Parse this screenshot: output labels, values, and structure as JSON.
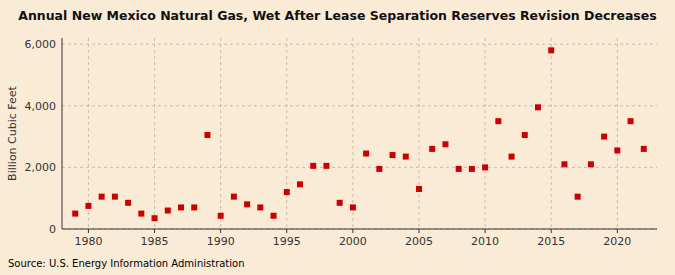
{
  "chart_data": {
    "type": "scatter",
    "title": "Annual New Mexico Natural Gas, Wet After Lease Separation Reserves Revision Decreases",
    "y_label": "Billion Cubic Feet",
    "annotations": [
      "Source: U.S. Energy Information Administration"
    ],
    "x": [
      1979,
      1980,
      1981,
      1982,
      1983,
      1984,
      1985,
      1986,
      1987,
      1988,
      1989,
      1990,
      1991,
      1992,
      1993,
      1994,
      1995,
      1996,
      1997,
      1998,
      1999,
      2000,
      2001,
      2002,
      2003,
      2004,
      2005,
      2006,
      2007,
      2008,
      2009,
      2010,
      2011,
      2012,
      2013,
      2014,
      2015,
      2016,
      2017,
      2018,
      2019,
      2020,
      2021,
      2022
    ],
    "values": [
      500,
      750,
      1050,
      1050,
      850,
      500,
      350,
      600,
      700,
      700,
      3050,
      430,
      1050,
      800,
      700,
      430,
      1200,
      1450,
      2050,
      2050,
      850,
      700,
      2450,
      1950,
      2400,
      2350,
      1300,
      2600,
      2750,
      1950,
      1950,
      2000,
      3500,
      2350,
      3050,
      3950,
      5800,
      2100,
      1050,
      2100,
      3000,
      2550,
      3500,
      2600
    ],
    "color": "#cc0000",
    "marker": "square",
    "xlim": [
      1978,
      2023
    ],
    "ylim": [
      0,
      6200
    ],
    "xticks": [
      1980,
      1985,
      1990,
      1995,
      2000,
      2005,
      2010,
      2015,
      2020
    ],
    "yticks": [
      0,
      {
        "value": 2000,
        "label": "2,000"
      },
      {
        "value": 4000,
        "label": "4,000"
      },
      {
        "value": 6000,
        "label": "6,000"
      }
    ],
    "grid": true
  }
}
